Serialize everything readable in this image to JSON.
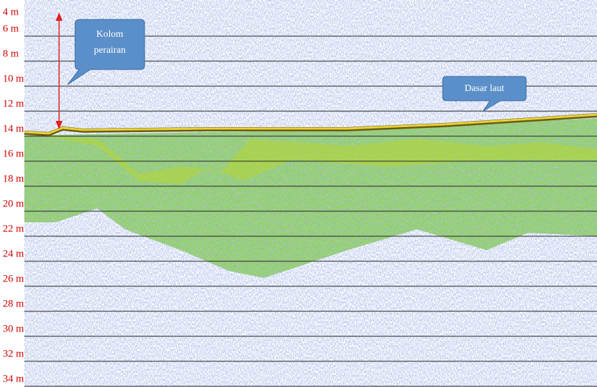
{
  "depth_labels": [
    "4 m",
    "6 m",
    "8 m",
    "10 m",
    "12 m",
    "14 m",
    "16 m",
    "18 m",
    "20 m",
    "22 m",
    "24 m",
    "26 m",
    "28 m",
    "30 m",
    "32 m",
    "34 m"
  ],
  "callouts": {
    "water_column": "Kolom perairan",
    "seabed": "Dasar laut"
  }
}
